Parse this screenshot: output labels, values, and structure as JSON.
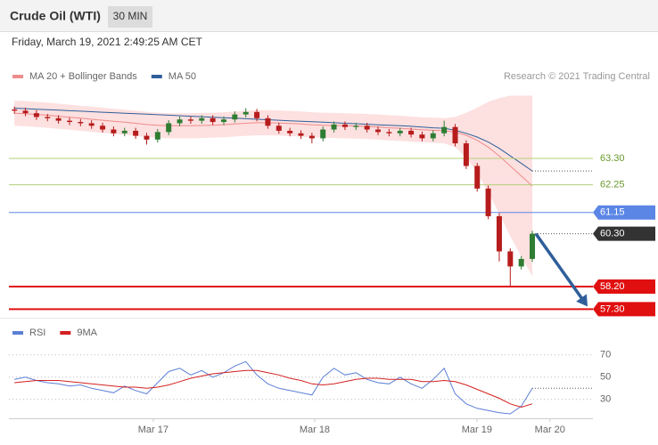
{
  "chart_data": {
    "type": "candlestick",
    "title": "Crude Oil (WTI)",
    "timeframe": "30 MIN",
    "subtitle": "Friday, March 19, 2021 2:49:25 AM CET",
    "credit": "Research © 2021 Trading Central",
    "xlim": [
      -0.5,
      52.5
    ],
    "xticks": [
      {
        "value": 12.6,
        "label": "Mar 17"
      },
      {
        "value": 27.25,
        "label": "Mar 18"
      },
      {
        "value": 41.97,
        "label": "Mar 19"
      },
      {
        "value": 48.6,
        "label": "Mar 20"
      }
    ],
    "ylim": [
      57.03,
      66.24
    ],
    "up_color": "#2e7d32",
    "down_color": "#b71c1c",
    "open": [
      65.25,
      65.2,
      65.1,
      64.95,
      64.9,
      64.8,
      64.75,
      64.7,
      64.6,
      64.45,
      64.3,
      64.4,
      64.2,
      64.05,
      64.35,
      64.7,
      64.85,
      64.8,
      64.9,
      64.75,
      64.85,
      65.05,
      65.15,
      64.9,
      64.6,
      64.4,
      64.3,
      64.2,
      64.1,
      64.45,
      64.65,
      64.55,
      64.6,
      64.45,
      64.35,
      64.3,
      64.4,
      64.25,
      64.1,
      64.3,
      64.55,
      63.9,
      63.0,
      62.1,
      61.0,
      59.6,
      59.0,
      59.3
    ],
    "high": [
      65.37,
      65.32,
      65.22,
      65.07,
      65.02,
      64.92,
      64.87,
      64.82,
      64.72,
      64.57,
      64.52,
      64.52,
      64.32,
      64.47,
      64.82,
      64.97,
      64.97,
      65.02,
      65.02,
      64.97,
      65.17,
      65.3,
      65.27,
      65.02,
      64.72,
      64.52,
      64.42,
      64.32,
      64.57,
      64.77,
      64.77,
      64.72,
      64.72,
      64.57,
      64.47,
      64.52,
      64.52,
      64.37,
      64.42,
      64.8,
      64.67,
      64.02,
      63.12,
      62.22,
      61.12,
      59.72,
      59.42,
      60.42
    ],
    "low": [
      65.08,
      64.98,
      64.83,
      64.78,
      64.68,
      64.63,
      64.58,
      64.48,
      64.33,
      64.18,
      64.18,
      64.08,
      63.85,
      63.93,
      64.23,
      64.58,
      64.68,
      64.68,
      64.63,
      64.63,
      64.73,
      64.93,
      64.78,
      64.48,
      64.28,
      64.18,
      64.08,
      63.9,
      63.98,
      64.33,
      64.43,
      64.43,
      64.33,
      64.23,
      64.18,
      64.18,
      64.13,
      63.98,
      63.98,
      64.18,
      63.78,
      62.88,
      61.98,
      60.88,
      59.2,
      58.2,
      58.88,
      59.18
    ],
    "close": [
      65.2,
      65.1,
      64.95,
      64.9,
      64.8,
      64.75,
      64.7,
      64.6,
      64.45,
      64.3,
      64.4,
      64.2,
      64.05,
      64.35,
      64.7,
      64.85,
      64.8,
      64.9,
      64.75,
      64.85,
      65.05,
      65.15,
      64.9,
      64.6,
      64.4,
      64.3,
      64.2,
      64.1,
      64.45,
      64.65,
      64.55,
      64.6,
      64.45,
      64.35,
      64.3,
      64.4,
      64.25,
      64.1,
      64.3,
      64.55,
      63.9,
      63.0,
      62.1,
      61.0,
      59.6,
      59.0,
      59.3,
      60.3
    ],
    "overlays": [
      {
        "name": "MA 20 + Bollinger Bands",
        "color": "#ee8c8c",
        "band_color": "#fde0e0",
        "values": [
          65.1,
          65.08,
          65.05,
          65.02,
          64.98,
          64.94,
          64.9,
          64.86,
          64.82,
          64.78,
          64.74,
          64.7,
          64.65,
          64.62,
          64.6,
          64.6,
          64.6,
          64.61,
          64.62,
          64.64,
          64.67,
          64.7,
          64.72,
          64.72,
          64.71,
          64.69,
          64.67,
          64.64,
          64.62,
          64.61,
          64.6,
          64.59,
          64.57,
          64.55,
          64.52,
          64.5,
          64.47,
          64.44,
          64.42,
          64.4,
          64.35,
          64.22,
          64.02,
          63.75,
          63.4,
          63.0,
          62.6,
          62.2
        ],
        "upper": [
          65.6,
          65.58,
          65.55,
          65.52,
          65.48,
          65.44,
          65.4,
          65.36,
          65.32,
          65.28,
          65.24,
          65.2,
          65.15,
          65.12,
          65.1,
          65.1,
          65.1,
          65.11,
          65.12,
          65.14,
          65.17,
          65.2,
          65.22,
          65.22,
          65.21,
          65.19,
          65.17,
          65.14,
          65.12,
          65.11,
          65.1,
          65.09,
          65.07,
          65.05,
          65.02,
          65.0,
          64.97,
          64.94,
          64.92,
          64.9,
          64.95,
          65.12,
          65.32,
          65.55,
          65.7,
          65.8,
          65.8,
          65.8
        ],
        "lower": [
          64.6,
          64.58,
          64.55,
          64.52,
          64.48,
          64.44,
          64.4,
          64.36,
          64.32,
          64.28,
          64.24,
          64.2,
          64.15,
          64.12,
          64.1,
          64.1,
          64.1,
          64.11,
          64.12,
          64.14,
          64.17,
          64.2,
          64.22,
          64.22,
          64.21,
          64.19,
          64.17,
          64.14,
          64.12,
          64.11,
          64.1,
          64.09,
          64.07,
          64.05,
          64.02,
          64.0,
          63.97,
          63.94,
          63.92,
          63.9,
          63.75,
          63.32,
          62.72,
          61.95,
          61.1,
          60.2,
          59.4,
          58.6
        ]
      },
      {
        "name": "MA 50",
        "color": "#2f5f9a",
        "values": [
          65.3,
          65.28,
          65.26,
          65.24,
          65.22,
          65.2,
          65.18,
          65.16,
          65.14,
          65.12,
          65.1,
          65.08,
          65.06,
          65.04,
          65.02,
          65.0,
          64.98,
          64.96,
          64.94,
          64.92,
          64.9,
          64.88,
          64.86,
          64.84,
          64.82,
          64.8,
          64.78,
          64.76,
          64.74,
          64.72,
          64.7,
          64.68,
          64.66,
          64.64,
          64.62,
          64.6,
          64.58,
          64.55,
          64.52,
          64.5,
          64.42,
          64.3,
          64.15,
          63.95,
          63.7,
          63.4,
          63.1,
          62.8
        ]
      }
    ],
    "levels": [
      {
        "value": 63.3,
        "label": "63.30",
        "color": "#b5cf7a",
        "text_color": "#6a9a2a",
        "line_width": 1,
        "badge": false,
        "dotted": false
      },
      {
        "value": 62.25,
        "label": "62.25",
        "color": "#b5cf7a",
        "text_color": "#6a9a2a",
        "line_width": 1,
        "badge": false,
        "dotted": false
      },
      {
        "value": 61.15,
        "label": "61.15",
        "color": "#5b86e5",
        "text_color": "#ffffff",
        "line_width": 1,
        "badge": true,
        "dotted": false
      },
      {
        "value": 60.3,
        "label": "60.30",
        "color": "#333333",
        "text_color": "#ffffff",
        "line_width": 1,
        "badge": true,
        "dotted": true
      },
      {
        "value": 58.2,
        "label": "58.20",
        "color": "#e01010",
        "text_color": "#ffffff",
        "line_width": 2,
        "badge": true,
        "dotted": false
      },
      {
        "value": 57.3,
        "label": "57.30",
        "color": "#e01010",
        "text_color": "#ffffff",
        "line_width": 2,
        "badge": true,
        "dotted": false
      }
    ],
    "rsi": {
      "ylim": [
        13,
        97
      ],
      "yticks": [
        70,
        50,
        30
      ],
      "series": [
        {
          "name": "RSI",
          "color": "#5b7fd6",
          "values": [
            48,
            50,
            47,
            45,
            44,
            42,
            43,
            40,
            38,
            36,
            42,
            38,
            35,
            45,
            55,
            58,
            52,
            56,
            50,
            54,
            60,
            64,
            52,
            44,
            40,
            38,
            36,
            34,
            50,
            58,
            52,
            54,
            48,
            45,
            44,
            50,
            44,
            40,
            48,
            58,
            35,
            26,
            22,
            20,
            18,
            17,
            24,
            40
          ]
        },
        {
          "name": "9MA",
          "color": "#d42020",
          "values": [
            45,
            46,
            47,
            47,
            47,
            46,
            45,
            44,
            43,
            42,
            41,
            41,
            40,
            41,
            43,
            46,
            49,
            51,
            53,
            54,
            55,
            56,
            56,
            54,
            52,
            49,
            47,
            44,
            43,
            44,
            46,
            48,
            49,
            49,
            48,
            48,
            48,
            46,
            46,
            47,
            46,
            43,
            39,
            35,
            31,
            26,
            23,
            26
          ]
        }
      ]
    }
  }
}
